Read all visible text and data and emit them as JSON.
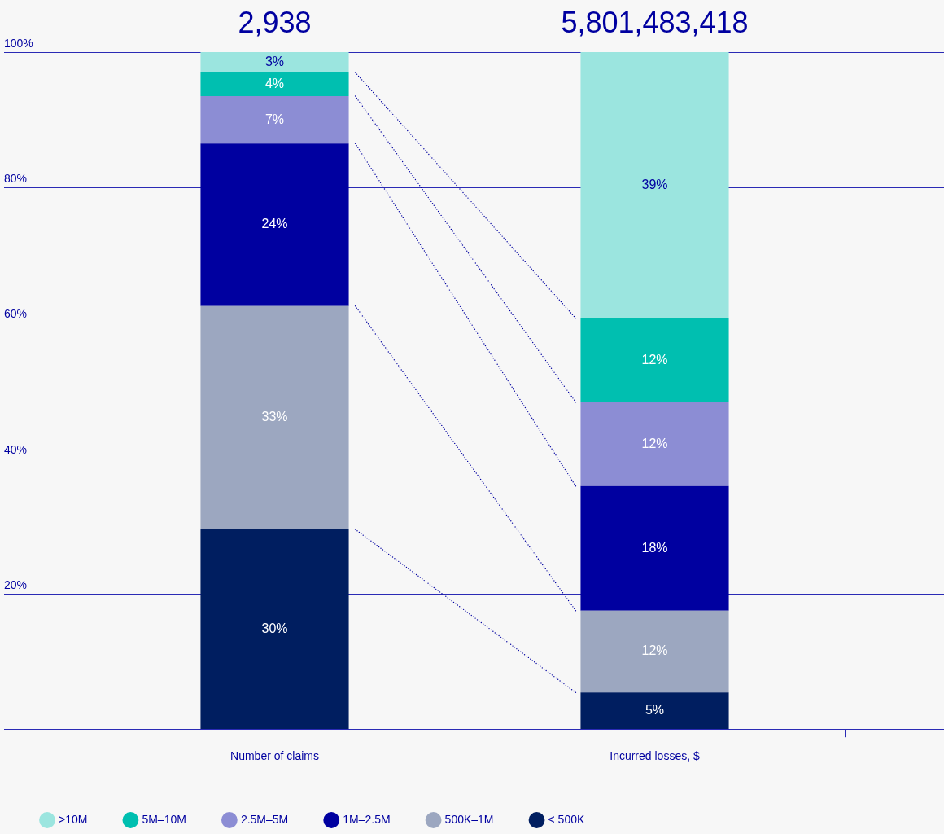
{
  "chart_data": {
    "type": "bar",
    "stacked": true,
    "categories": [
      "Number of claims",
      "Incurred losses, $"
    ],
    "annotations": [
      "2,938",
      "5,801,483,418"
    ],
    "series": [
      {
        "name": "< 500K",
        "color": "#001e60",
        "values": [
          29.5,
          5.4
        ],
        "value_labels": [
          "30%",
          "5%"
        ]
      },
      {
        "name": "500K–1M",
        "color": "#9ca7c0",
        "values": [
          33,
          12.1
        ],
        "value_labels": [
          "33%",
          "12%"
        ]
      },
      {
        "name": "1M–2.5M",
        "color": "#0000a0",
        "values": [
          24,
          18.4
        ],
        "value_labels": [
          "24%",
          "18%"
        ]
      },
      {
        "name": "2.5M–5M",
        "color": "#8c8dd4",
        "values": [
          7,
          12.4
        ],
        "value_labels": [
          "7%",
          "12%"
        ]
      },
      {
        "name": "5M–10M",
        "color": "#00bfb0",
        "values": [
          3.5,
          12.4
        ],
        "value_labels": [
          "4%",
          "12%"
        ]
      },
      {
        "name": ">10M",
        "color": "#9be5df",
        "values": [
          3,
          39.3
        ],
        "value_labels": [
          "3%",
          "39%"
        ]
      }
    ],
    "ylim": [
      0,
      100
    ],
    "yticks": [
      {
        "value": 0,
        "label": null
      },
      {
        "value": 20,
        "label": "20%"
      },
      {
        "value": 40,
        "label": "40%"
      },
      {
        "value": 60,
        "label": "60%"
      },
      {
        "value": 80,
        "label": "80%"
      },
      {
        "value": 100,
        "label": "100%"
      }
    ],
    "grid": "y",
    "legend": "bottom"
  }
}
